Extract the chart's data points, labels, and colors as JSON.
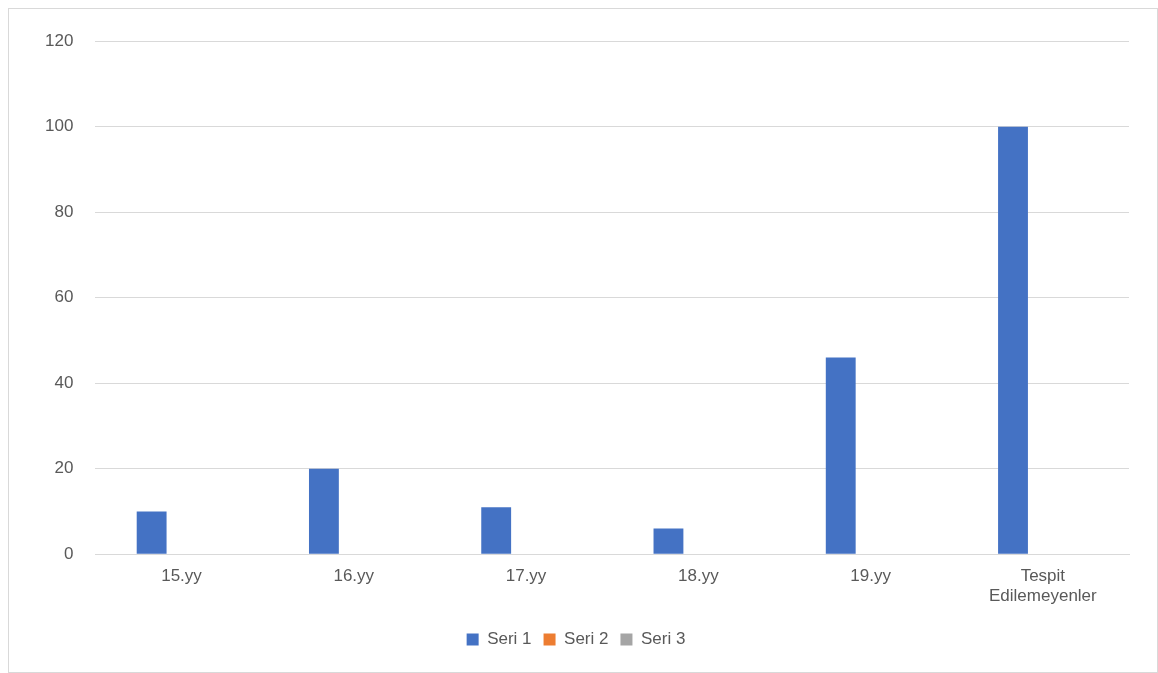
{
  "chart_data": {
    "type": "bar",
    "categories": [
      "15.yy",
      "16.yy",
      "17.yy",
      "18.yy",
      "19.yy",
      "Tespit Edilemeyenler"
    ],
    "series": [
      {
        "name": "Seri 1",
        "color": "#4472c4",
        "values": [
          10,
          20,
          11,
          6,
          46,
          100
        ]
      },
      {
        "name": "Seri 2",
        "color": "#ed7d31",
        "values": [
          null,
          null,
          null,
          null,
          null,
          null
        ]
      },
      {
        "name": "Seri 3",
        "color": "#a5a5a5",
        "values": [
          null,
          null,
          null,
          null,
          null,
          null
        ]
      }
    ],
    "ylim": [
      0,
      120
    ],
    "yticks": [
      0,
      20,
      40,
      60,
      80,
      100,
      120
    ],
    "grid": "y",
    "legend": "bottom"
  }
}
